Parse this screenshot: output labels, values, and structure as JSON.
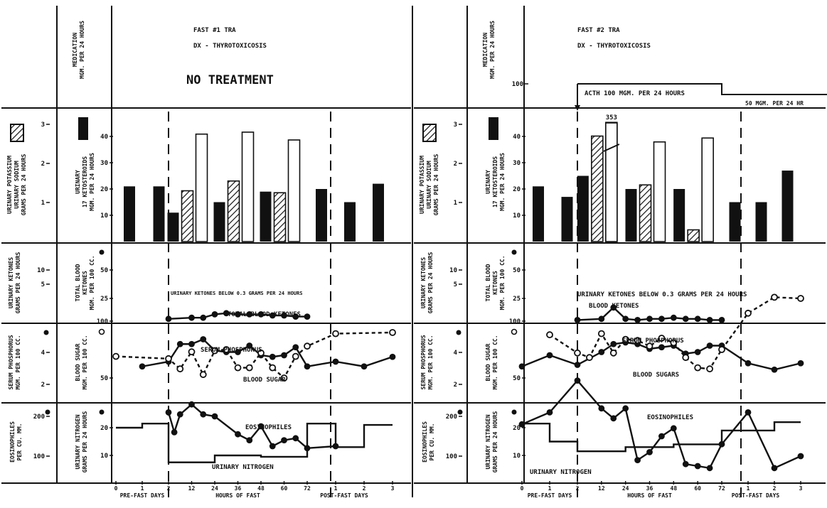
{
  "panels": [
    {
      "header": {
        "title": "FAST #1 TRA",
        "diagnosis": "DX - THYROTOXICOSIS",
        "treatment": "NO TREATMENT"
      },
      "labels": {
        "medication": [
          "MEDICATION",
          "MGM. PER 24 HOURS"
        ],
        "potassium_sodium": [
          "URINARY POTASSIUM",
          "URINARY SODIUM",
          "GRAMS PER 24 HOURS"
        ],
        "ketosteroids": [
          "URINARY",
          "17 KETOSTEROIDS",
          "MGM. PER 24 HOURS"
        ],
        "urinary_ketones": [
          "URINARY KETONES",
          "GRAMS PER 24 HOURS"
        ],
        "blood_ketones": [
          "TOTAL BLOOD",
          "KETONES",
          "MGM. PER 100 CC."
        ],
        "phosphorus": [
          "SERUM PHOSPHORUS",
          "MGM. PER 100 CC."
        ],
        "blood_sugar": [
          "BLOOD SUGAR",
          "MGM. PER 100 CC."
        ],
        "eosinophiles": [
          "EOSINOPHILES",
          "PER CU. MM."
        ],
        "urinary_nitrogen": [
          "URINARY NITROGEN",
          "GRAMS PER 24 HOURS"
        ]
      },
      "annotations": {
        "ketone_note": "URINARY KETONES BELOW 0.3 GRAMS PER 24 HOURS",
        "blood_ketones": "TOTAL BLOOD KETONES",
        "phosphorus": "SERUM PHOSPHORUS",
        "blood_sugar": "BLOOD SUGAR",
        "eosinophiles": "EOSINOPHILES",
        "urinary_nitrogen": "URINARY NITROGEN"
      },
      "axis": {
        "ticks": [
          "0",
          "1",
          "2",
          "12",
          "24",
          "36",
          "48",
          "60",
          "72",
          "1",
          "2",
          "3"
        ],
        "labels": [
          "PRE-FAST DAYS",
          "HOURS OF FAST",
          "POST-FAST DAYS"
        ]
      }
    },
    {
      "header": {
        "title": "FAST #2 TRA",
        "diagnosis": "DX - THYROTOXICOSIS",
        "treatment": ""
      },
      "medication_labels": {
        "tick": "100",
        "acth": "ACTH 100 MGM. PER 24 HOURS",
        "acth_reduced": "50 MGM. PER 24 HR",
        "peak_label": "353"
      },
      "labels": {
        "medication": [
          "MEDICATION",
          "MGM. PER 24 HOURS"
        ],
        "potassium_sodium": [
          "URINARY POTASSIUM",
          "URINARY SODIUM",
          "GRAMS PER 24 HOURS"
        ],
        "ketosteroids": [
          "URINARY",
          "17 KETOSTEROIDS",
          "MGM. PER 24 HOURS"
        ],
        "urinary_ketones": [
          "URINARY KETONES",
          "GRAMS PER 24 HOURS"
        ],
        "blood_ketones": [
          "TOTAL BLOOD",
          "KETONES",
          "MGM. PER 100 CC."
        ],
        "phosphorus": [
          "SERUM PHOSPHORUS",
          "MGM. PER 100 CC."
        ],
        "blood_sugar": [
          "BLOOD SUGAR",
          "MGM. PER 100 CC."
        ],
        "eosinophiles": [
          "EOSINOPHILES",
          "PER CU. MM."
        ],
        "urinary_nitrogen": [
          "URINARY NITROGEN",
          "GRAMS PER 24 HOURS"
        ]
      },
      "annotations": {
        "ketone_note": "URINARY KETONES BELOW 0.3 GRAMS PER 24 HOURS",
        "blood_ketones": "BLOOD KETONES",
        "phosphorus": "SERUM PHOSPHORUS",
        "blood_sugar": "BLOOD SUGARS",
        "eosinophiles": "EOSINOPHILES",
        "urinary_nitrogen": "URINARY NITROGEN"
      },
      "axis": {
        "ticks": [
          "0",
          "1",
          "2",
          "12",
          "24",
          "36",
          "48",
          "60",
          "72",
          "1",
          "2",
          "3"
        ],
        "labels": [
          "PRE-FAST DAYS",
          "HOURS OF FAST",
          "POST-FAST DAYS"
        ]
      }
    }
  ],
  "chart_data": [
    {
      "type": "composite",
      "title": "FAST #1 TRA",
      "subtitle": "DX - THYROTOXICOSIS",
      "medication": "NO TREATMENT",
      "time_axis": {
        "pre_fast_days": [
          0,
          1,
          2
        ],
        "fast_hours": [
          12,
          24,
          36,
          48,
          60,
          72
        ],
        "post_fast_days": [
          1,
          2,
          3
        ]
      },
      "ketosteroids_mgm_per_24h": [
        {
          "period": "pre-day-1",
          "value": 21
        },
        {
          "period": "pre-day-2",
          "value": 21
        },
        {
          "period": "fast-0-24h",
          "value": 11
        },
        {
          "period": "fast-24-48h",
          "value": 15
        },
        {
          "period": "fast-48-72h",
          "value": 19
        },
        {
          "period": "post-day-1",
          "value": 20
        },
        {
          "period": "post-day-2",
          "value": 15
        },
        {
          "period": "post-day-3",
          "value": 22
        }
      ],
      "urinary_potassium_g_per_24h": [
        {
          "period": "fast-0-24h",
          "value": 1.3
        },
        {
          "period": "fast-24-48h",
          "value": 1.55
        },
        {
          "period": "fast-48-72h",
          "value": 1.25
        }
      ],
      "urinary_sodium_g_per_24h": [
        {
          "period": "fast-0-24h",
          "value": 2.75
        },
        {
          "period": "fast-24-48h",
          "value": 2.8
        },
        {
          "period": "fast-48-72h",
          "value": 2.6
        }
      ],
      "blood_ketones_mgm_per_100cc": {
        "x": [
          0,
          12,
          18,
          24,
          30,
          36,
          42,
          48,
          54,
          60,
          66,
          72
        ],
        "y": [
          1,
          1.5,
          1.5,
          3,
          3.5,
          3,
          3,
          3,
          2.5,
          2.5,
          2,
          2
        ]
      },
      "urinary_ketones_note": "URINARY KETONES BELOW 0.3 GRAMS PER 24 HOURS",
      "serum_phosphorus_mgm_per_100cc": {
        "x": [
          -24,
          0,
          6,
          12,
          18,
          24,
          30,
          36,
          42,
          48,
          54,
          60,
          66,
          72,
          96,
          120,
          144
        ],
        "y": [
          4.1,
          4.4,
          5.5,
          5.5,
          5.8,
          5.1,
          5,
          5,
          5.4,
          4.8,
          4.7,
          4.8,
          5.3,
          4.1,
          4.4,
          4.1,
          4.7
        ]
      },
      "blood_sugar_mgm_per_100cc": {
        "x": [
          -48,
          0,
          6,
          12,
          18,
          24,
          30,
          36,
          42,
          48,
          54,
          60,
          66,
          72,
          96,
          144
        ],
        "y": [
          69,
          67,
          58,
          73,
          53,
          74,
          75,
          59,
          59,
          72,
          59,
          50,
          69,
          78,
          89,
          90
        ]
      },
      "eosinophiles_per_cu_mm": {
        "x": [
          0,
          3,
          6,
          12,
          18,
          24,
          36,
          42,
          48,
          54,
          60,
          66,
          72,
          96
        ],
        "y": [
          210,
          160,
          205,
          230,
          205,
          200,
          155,
          140,
          175,
          125,
          140,
          145,
          120,
          125
        ]
      },
      "urinary_nitrogen_g_per_24h": [
        {
          "period": "pre-day-1",
          "value": 20
        },
        {
          "period": "pre-day-2",
          "value": 21.5
        },
        {
          "period": "fast-0-24h",
          "value": 7.5
        },
        {
          "period": "fast-24-48h",
          "value": 10
        },
        {
          "period": "fast-48-72h",
          "value": 9.5
        },
        {
          "period": "post-day-1",
          "value": 21.5
        },
        {
          "period": "post-day-2",
          "value": 13
        },
        {
          "period": "post-day-3",
          "value": 21
        }
      ],
      "axis_labels": [
        "PRE-FAST DAYS",
        "HOURS OF FAST",
        "POST-FAST DAYS"
      ]
    },
    {
      "type": "composite",
      "title": "FAST #2 TRA",
      "subtitle": "DX - THYROTOXICOSIS",
      "medication_mgm_per_24h": [
        {
          "from_hours": 0,
          "to_hours": 72,
          "value": 100,
          "label": "ACTH 100 MGM. PER 24 HOURS"
        },
        {
          "from_hours": 72,
          "to_hours": 144,
          "value": 50,
          "label": "50 MGM. PER 24 HR"
        }
      ],
      "ketosteroids_mgm_per_24h": [
        {
          "period": "pre-day-1",
          "value": 21
        },
        {
          "period": "pre-day-2",
          "value": 17
        },
        {
          "period": "fast-0-24h",
          "value": 25
        },
        {
          "period": "fast-24-48h",
          "value": 20
        },
        {
          "period": "fast-48-72h",
          "value": 20
        },
        {
          "period": "post-day-1",
          "value": 15
        },
        {
          "period": "post-day-2",
          "value": 15
        },
        {
          "period": "post-day-3",
          "value": 27
        }
      ],
      "urinary_potassium_g_per_24h": [
        {
          "period": "fast-0-24h",
          "value": 2.7
        },
        {
          "period": "fast-24-48h",
          "value": 1.45
        },
        {
          "period": "fast-48-72h",
          "value": 0.3
        }
      ],
      "urinary_sodium_g_per_24h": [
        {
          "period": "fast-0-24h",
          "value": 3.53,
          "label": "353"
        },
        {
          "period": "fast-24-48h",
          "value": 2.55
        },
        {
          "period": "fast-48-72h",
          "value": 2.65
        }
      ],
      "blood_ketones_mgm_per_100cc": {
        "x": [
          0,
          12,
          18,
          24,
          30,
          36,
          42,
          48,
          54,
          60,
          66,
          72
        ],
        "y": [
          0.5,
          1,
          6,
          1,
          0.5,
          1,
          1,
          1.5,
          1,
          1,
          0.5,
          0.5
        ]
      },
      "urinary_ketones_note": "URINARY KETONES BELOW 0.3 GRAMS PER 24 HOURS",
      "serum_phosphorus_mgm_per_100cc": {
        "x": [
          -48,
          -24,
          0,
          12,
          18,
          24,
          30,
          36,
          42,
          48,
          54,
          60,
          66,
          72,
          96,
          120,
          144
        ],
        "y": [
          4.1,
          4.8,
          4.2,
          5,
          5.5,
          5.6,
          5.5,
          5.2,
          5.3,
          5.4,
          4.9,
          5,
          5.4,
          5.4,
          4.3,
          3.9,
          4.3
        ]
      },
      "blood_sugar_mgm_per_100cc": {
        "x": [
          -24,
          0,
          6,
          12,
          18,
          24,
          30,
          36,
          42,
          48,
          54,
          60,
          66,
          72,
          96,
          120,
          144
        ],
        "y": [
          88,
          72,
          68,
          89,
          72,
          84,
          83,
          78,
          85,
          81,
          68,
          59,
          58,
          75,
          107,
          121,
          120
        ]
      },
      "eosinophiles_per_cu_mm": {
        "x": [
          -48,
          -24,
          0,
          12,
          18,
          24,
          30,
          36,
          42,
          48,
          54,
          60,
          66,
          72,
          96,
          120,
          144
        ],
        "y": [
          180,
          210,
          290,
          220,
          195,
          220,
          90,
          110,
          150,
          170,
          80,
          75,
          70,
          130,
          210,
          70,
          100
        ]
      },
      "urinary_nitrogen_g_per_24h": [
        {
          "period": "pre-day-1",
          "value": 21.5
        },
        {
          "period": "pre-day-2",
          "value": 15
        },
        {
          "period": "fast-0-24h",
          "value": 11.5
        },
        {
          "period": "fast-24-48h",
          "value": 13
        },
        {
          "period": "fast-48-72h",
          "value": 14
        },
        {
          "period": "post-day-1",
          "value": 19
        },
        {
          "period": "post-day-2",
          "value": 19
        },
        {
          "period": "post-day-3",
          "value": 22
        }
      ],
      "axis_labels": [
        "PRE-FAST DAYS",
        "HOURS OF FAST",
        "POST-FAST DAYS"
      ]
    }
  ]
}
